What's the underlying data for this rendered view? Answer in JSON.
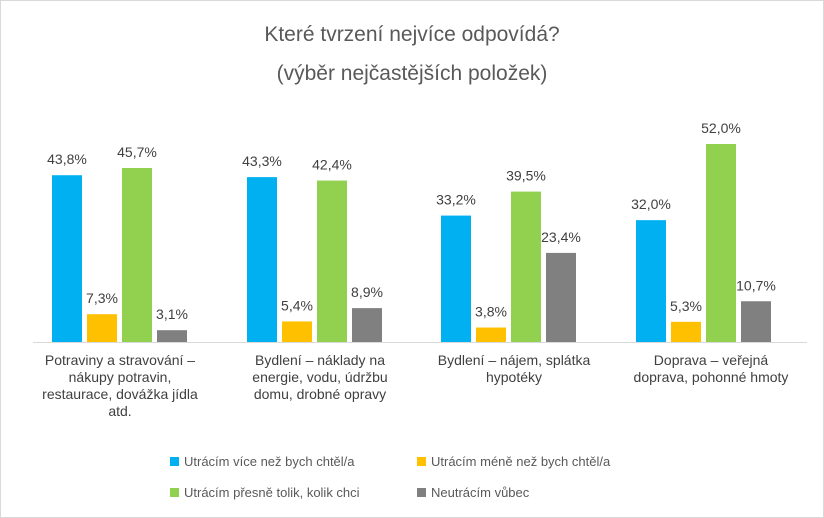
{
  "chart_data": {
    "type": "bar",
    "title": "Které tvrzení nejvíce odpovídá?",
    "subtitle": "(výběr nejčastějších položek)",
    "categories": [
      [
        "Potraviny a stravování –",
        "nákupy potravin,",
        "restaurace, dovážka jídla",
        "atd."
      ],
      [
        "Bydlení – náklady na",
        "energie, vodu, údržbu",
        "domu, drobné opravy"
      ],
      [
        "Bydlení – nájem, splátka",
        "hypotéky"
      ],
      [
        "Doprava – veřejná",
        "doprava, pohonné hmoty"
      ]
    ],
    "series": [
      {
        "name": "Utrácím více než bych chtěl/a",
        "color": "#00b0f0",
        "values": [
          43.8,
          43.3,
          33.2,
          32.0
        ],
        "labels": [
          "43,8%",
          "43,3%",
          "33,2%",
          "32,0%"
        ]
      },
      {
        "name": "Utrácím méně než bych chtěl/a",
        "color": "#ffc000",
        "values": [
          7.3,
          5.4,
          3.8,
          5.3
        ],
        "labels": [
          "7,3%",
          "5,4%",
          "3,8%",
          "5,3%"
        ]
      },
      {
        "name": "Utrácím přesně tolik, kolik chci",
        "color": "#92d050",
        "values": [
          45.7,
          42.4,
          39.5,
          52.0
        ],
        "labels": [
          "45,7%",
          "42,4%",
          "39,5%",
          "52,0%"
        ]
      },
      {
        "name": "Neutrácím vůbec",
        "color": "#808080",
        "values": [
          3.1,
          8.9,
          23.4,
          10.7
        ],
        "labels": [
          "3,1%",
          "8,9%",
          "23,4%",
          "10,7%"
        ]
      }
    ],
    "ylim": [
      0,
      52
    ],
    "grid": false,
    "legend": "bottom"
  }
}
